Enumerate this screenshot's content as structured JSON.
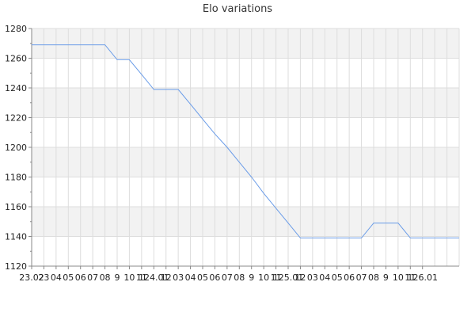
{
  "chart_data": {
    "type": "line",
    "title": "Elo variations",
    "xlabel": "",
    "ylabel": "",
    "ylim": [
      1120,
      1280
    ],
    "yticks": [
      1120,
      1140,
      1160,
      1180,
      1200,
      1220,
      1240,
      1260,
      1280
    ],
    "grid": true,
    "legend": "none",
    "x_tick_labels": [
      "23.02",
      "23",
      "04",
      "05",
      "06",
      "07",
      "08",
      "9",
      "10",
      "11",
      "124.01",
      "12",
      "03",
      "04",
      "05",
      "06",
      "07",
      "08",
      "9",
      "10",
      "11",
      "125.01",
      "12",
      "03",
      "04",
      "05",
      "06",
      "07",
      "08",
      "9",
      "10",
      "11",
      "126.01"
    ],
    "series": [
      {
        "color": "#6a9ce8",
        "x": [
          0,
          6,
          7,
          8,
          9,
          10,
          11,
          12,
          13,
          14,
          15,
          16,
          17,
          18,
          19,
          20,
          21,
          22,
          23,
          24,
          25,
          26,
          27,
          28,
          29,
          30,
          31,
          32,
          33,
          34,
          35
        ],
        "values": [
          1269,
          1269,
          1259,
          1259,
          1249,
          1239,
          1239,
          1239,
          1229,
          1219,
          1209,
          1200,
          1190,
          1180,
          1169,
          1159,
          1149,
          1139,
          1139,
          1139,
          1139,
          1139,
          1139,
          1149,
          1149,
          1149,
          1139,
          1139,
          1139,
          1139,
          1139
        ]
      }
    ]
  }
}
